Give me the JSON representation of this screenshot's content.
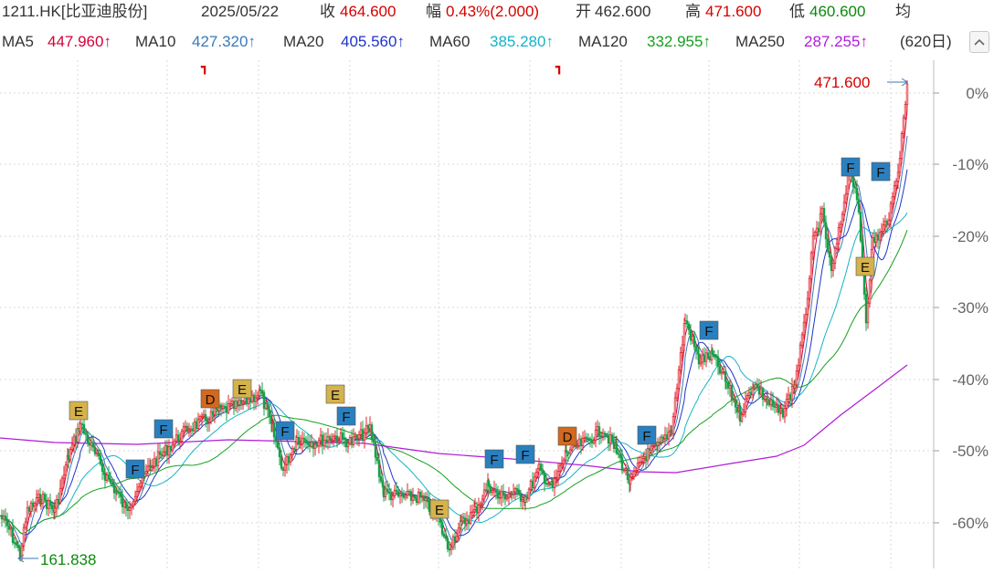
{
  "header": {
    "symbol": "1211.HK[比亚迪股份]",
    "date": "2025/05/22",
    "close_label": "收",
    "close_value": "464.600",
    "change_label": "幅",
    "change_value": "0.43%(2.000)",
    "open_label": "开",
    "open_value": "462.600",
    "high_label": "高",
    "high_value": "471.600",
    "low_label": "低",
    "low_value": "460.600",
    "avg_label": "均",
    "more": "..."
  },
  "ma": {
    "items": [
      {
        "label": "MA5",
        "value": "447.960↑",
        "color": "#d4003a"
      },
      {
        "label": "MA10",
        "value": "427.320↑",
        "color": "#3a7ab8"
      },
      {
        "label": "MA20",
        "value": "405.560↑",
        "color": "#1f33c9"
      },
      {
        "label": "MA60",
        "value": "385.280↑",
        "color": "#16b3c6"
      },
      {
        "label": "MA120",
        "value": "332.955↑",
        "color": "#16a01e"
      },
      {
        "label": "MA250",
        "value": "287.255↑",
        "color": "#b01cd6"
      }
    ],
    "period": "(620日)"
  },
  "chart_data": {
    "type": "line",
    "y_axis_ticks": [
      "0%",
      "-10%",
      "-20%",
      "-30%",
      "-40%",
      "-50%",
      "-60%"
    ],
    "high_marker": "471.600",
    "low_marker": "161.838",
    "event_markers": [
      {
        "label": "E",
        "color": "#d4b24c"
      },
      {
        "label": "F",
        "color": "#2a7fbf"
      },
      {
        "label": "D",
        "color": "#d2691e"
      }
    ]
  }
}
